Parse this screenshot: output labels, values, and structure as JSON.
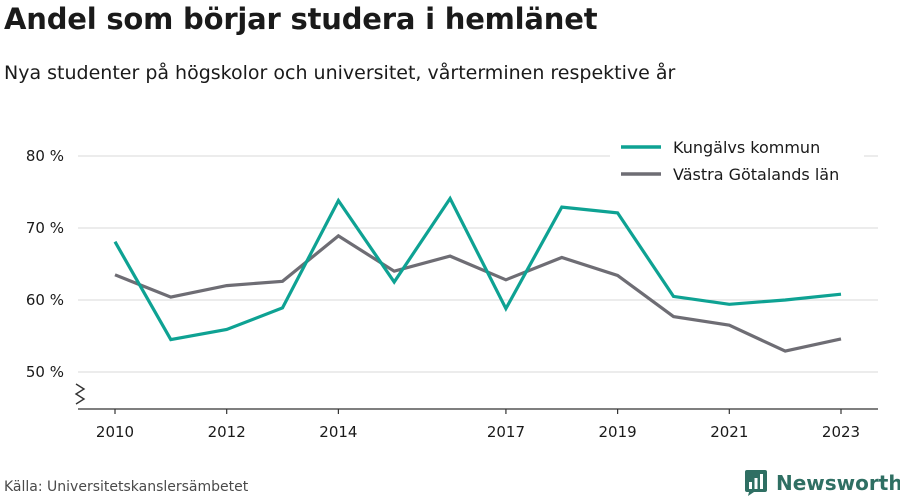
{
  "header": {
    "title": "Andel som börjar studera i hemlänet",
    "subtitle": "Nya studenter på högskolor och universitet, vårterminen respektive år"
  },
  "footer": {
    "source": "Källa: Universitetskanslersämbetet",
    "brand": "Newsworthy"
  },
  "chart_data": {
    "type": "line",
    "x": [
      2010,
      2011,
      2012,
      2013,
      2014,
      2015,
      2016,
      2017,
      2018,
      2019,
      2020,
      2021,
      2022,
      2023
    ],
    "x_tick_labels": [
      "2010",
      "2012",
      "2014",
      "2017",
      "2019",
      "2021",
      "2023"
    ],
    "y_ticks": [
      50,
      60,
      70,
      80
    ],
    "y_tick_labels": [
      "50 %",
      "60 %",
      "70 %",
      "80 %"
    ],
    "ylim": [
      45,
      80
    ],
    "axis_break": true,
    "grid": true,
    "legend_position": "top-right",
    "series": [
      {
        "name": "Kungälvs kommun",
        "color": "#0ea293",
        "values": [
          68.1,
          54.5,
          55.9,
          58.9,
          73.8,
          62.5,
          74.1,
          58.8,
          72.9,
          72.1,
          60.5,
          59.4,
          60.0,
          60.8
        ]
      },
      {
        "name": "Västra Götalands län",
        "color": "#6e6d74",
        "values": [
          63.5,
          60.4,
          62.0,
          62.6,
          68.9,
          64.0,
          66.1,
          62.8,
          65.9,
          63.4,
          57.7,
          56.5,
          52.9,
          54.6
        ]
      }
    ]
  }
}
